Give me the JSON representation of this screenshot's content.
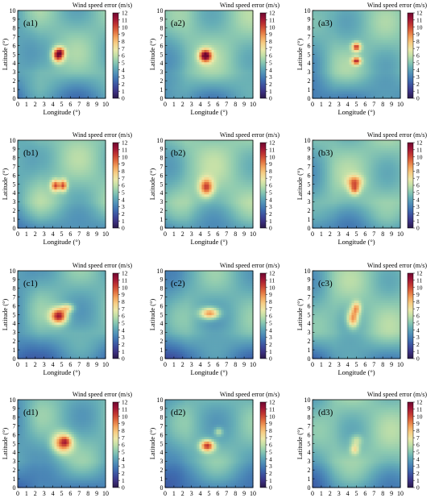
{
  "chart_data": {
    "type": "heatmap",
    "colorbar": {
      "title": "Wind speed error (m/s)",
      "range": [
        0,
        12
      ],
      "ticks": [
        0,
        1,
        2,
        3,
        4,
        5,
        6,
        7,
        8,
        9,
        10,
        11,
        12
      ],
      "colors": [
        "#2a1a4a",
        "#3b2f7e",
        "#3d4c9c",
        "#3f6fb0",
        "#4f8fb8",
        "#66aeb6",
        "#8fcbb0",
        "#c2e0a8",
        "#ece8a8",
        "#f6cf86",
        "#f3a55d",
        "#e06c3e",
        "#c43a32",
        "#9e1535",
        "#6e0730"
      ]
    },
    "xlabel": "Longitude (°)",
    "ylabel": "Latitude (°)",
    "xlim": [
      0,
      10
    ],
    "ylim": [
      0,
      10
    ],
    "xticks": [
      0,
      1,
      2,
      3,
      4,
      5,
      6,
      7,
      8,
      9,
      10
    ],
    "yticks": [
      0,
      1,
      2,
      3,
      4,
      5,
      6,
      7,
      8,
      9,
      10
    ],
    "panels": [
      {
        "label": "(a1)",
        "base": 4.8,
        "field": [
          {
            "x": 4.6,
            "y": 5.0,
            "sx": 0.45,
            "sy": 0.55,
            "a": 7.0
          },
          {
            "x": 5.0,
            "y": 5.4,
            "sx": 0.3,
            "sy": 0.3,
            "a": 2.0
          }
        ]
      },
      {
        "label": "(a2)",
        "base": 5.0,
        "field": [
          {
            "x": 4.6,
            "y": 4.9,
            "sx": 0.5,
            "sy": 0.5,
            "a": 7.0
          }
        ]
      },
      {
        "label": "(a3)",
        "base": 4.8,
        "field": [
          {
            "x": 5.0,
            "y": 5.9,
            "sx": 0.35,
            "sy": 0.35,
            "a": 5.5
          },
          {
            "x": 5.0,
            "y": 4.3,
            "sx": 0.35,
            "sy": 0.3,
            "a": 5.5
          }
        ]
      },
      {
        "label": "(b1)",
        "base": 5.0,
        "field": [
          {
            "x": 4.3,
            "y": 4.9,
            "sx": 0.35,
            "sy": 0.45,
            "a": 5.0
          },
          {
            "x": 5.2,
            "y": 4.9,
            "sx": 0.3,
            "sy": 0.45,
            "a": 5.0
          }
        ]
      },
      {
        "label": "(b2)",
        "base": 5.2,
        "field": [
          {
            "x": 4.7,
            "y": 4.7,
            "sx": 0.55,
            "sy": 0.7,
            "a": 5.0
          }
        ]
      },
      {
        "label": "(b3)",
        "base": 5.0,
        "field": [
          {
            "x": 4.8,
            "y": 5.3,
            "sx": 0.6,
            "sy": 0.5,
            "a": 4.0
          },
          {
            "x": 4.8,
            "y": 4.4,
            "sx": 0.4,
            "sy": 0.4,
            "a": 3.5
          }
        ]
      },
      {
        "label": "(c1)",
        "base": 4.5,
        "field": [
          {
            "x": 4.7,
            "y": 4.9,
            "sx": 0.65,
            "sy": 0.6,
            "a": 6.5
          },
          {
            "x": 5.7,
            "y": 5.8,
            "sx": 0.5,
            "sy": 0.35,
            "a": 3.0
          }
        ]
      },
      {
        "label": "(c2)",
        "base": 4.5,
        "field": [
          {
            "x": 5.1,
            "y": 5.2,
            "sx": 0.75,
            "sy": 0.45,
            "a": 5.0
          }
        ]
      },
      {
        "label": "(c3)",
        "base": 5.0,
        "field": [
          {
            "x": 4.6,
            "y": 4.6,
            "sx": 0.45,
            "sy": 0.7,
            "a": 4.5
          },
          {
            "x": 5.0,
            "y": 5.8,
            "sx": 0.35,
            "sy": 0.5,
            "a": 3.5
          }
        ]
      },
      {
        "label": "(d1)",
        "base": 4.5,
        "field": [
          {
            "x": 5.1,
            "y": 5.1,
            "sx": 0.8,
            "sy": 0.8,
            "a": 5.0
          },
          {
            "x": 5.5,
            "y": 5.3,
            "sx": 0.4,
            "sy": 0.4,
            "a": 2.0
          }
        ]
      },
      {
        "label": "(d2)",
        "base": 4.5,
        "field": [
          {
            "x": 4.8,
            "y": 4.8,
            "sx": 0.55,
            "sy": 0.45,
            "a": 6.0
          },
          {
            "x": 6.1,
            "y": 6.4,
            "sx": 0.35,
            "sy": 0.35,
            "a": 2.0
          }
        ]
      },
      {
        "label": "(d3)",
        "base": 5.0,
        "field": [
          {
            "x": 4.8,
            "y": 4.4,
            "sx": 0.35,
            "sy": 0.4,
            "a": 2.5
          },
          {
            "x": 5.0,
            "y": 5.4,
            "sx": 0.45,
            "sy": 0.45,
            "a": 1.8
          }
        ]
      }
    ]
  }
}
